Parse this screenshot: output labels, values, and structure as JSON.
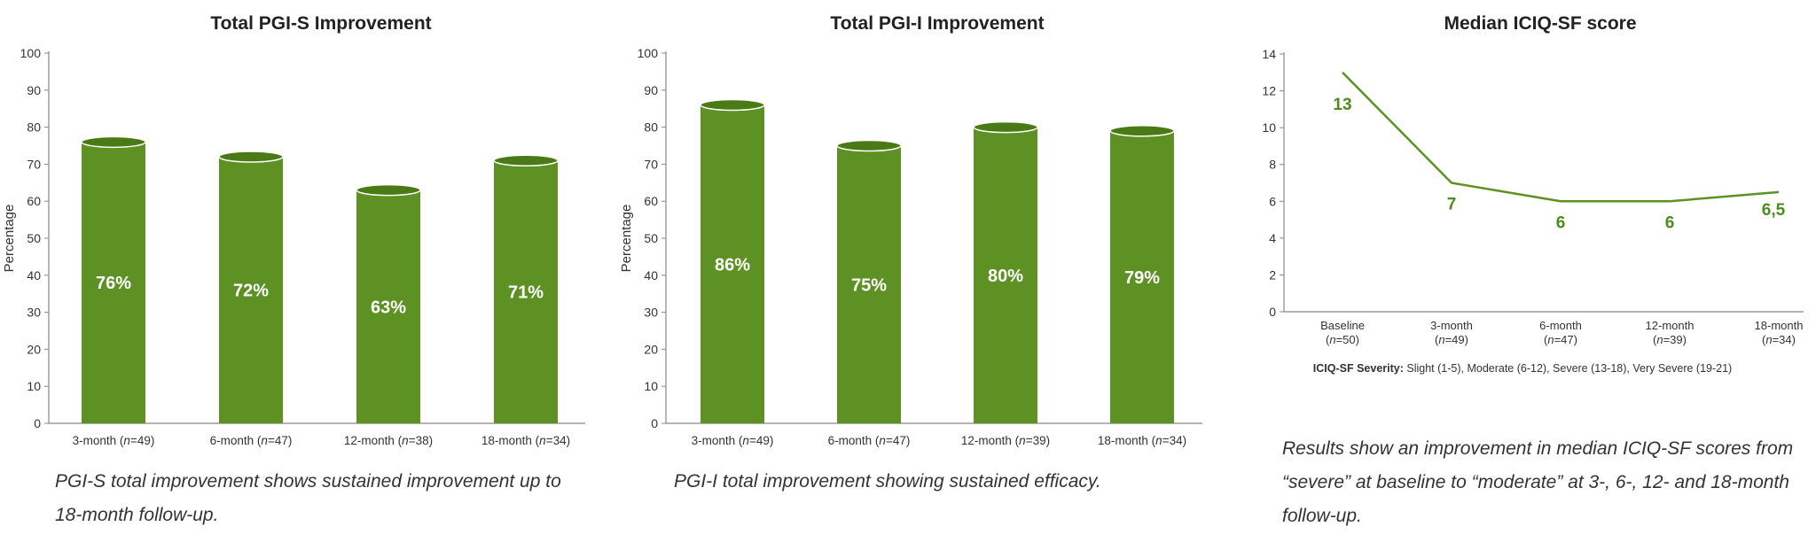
{
  "colors": {
    "bar": "#5e9124",
    "bar_top": "#4a7a16",
    "line": "#5e9124",
    "label_green": "#4f8a1c",
    "axis": "#888888",
    "text": "#333333",
    "white": "#ffffff"
  },
  "chart_data": [
    {
      "type": "bar",
      "title": "Total PGI-S Improvement",
      "ylabel": "Percentage",
      "xlabel": "",
      "ylim": [
        0,
        100
      ],
      "yticks": [
        0,
        10,
        20,
        30,
        40,
        50,
        60,
        70,
        80,
        90,
        100
      ],
      "categories": [
        "3-month",
        "6-month",
        "12-month",
        "18-month"
      ],
      "n_labels": [
        "49",
        "47",
        "38",
        "34"
      ],
      "values": [
        76,
        72,
        63,
        71
      ],
      "data_labels": [
        "76%",
        "72%",
        "63%",
        "71%"
      ],
      "caption": [
        "PGI-S total improvement shows sustained improvement up to",
        "18-month follow-up."
      ]
    },
    {
      "type": "bar",
      "title": "Total PGI-I Improvement",
      "ylabel": "Percentage",
      "xlabel": "",
      "ylim": [
        0,
        100
      ],
      "yticks": [
        0,
        10,
        20,
        30,
        40,
        50,
        60,
        70,
        80,
        90,
        100
      ],
      "categories": [
        "3-month",
        "6-month",
        "12-month",
        "18-month"
      ],
      "n_labels": [
        "49",
        "47",
        "39",
        "34"
      ],
      "values": [
        86,
        75,
        80,
        79
      ],
      "data_labels": [
        "86%",
        "75%",
        "80%",
        "79%"
      ],
      "caption": [
        "PGI-I total improvement showing sustained efficacy."
      ]
    },
    {
      "type": "line",
      "title": "Median ICIQ-SF score",
      "ylabel": "",
      "xlabel": "",
      "ylim": [
        0,
        14
      ],
      "yticks": [
        0,
        2,
        4,
        6,
        8,
        10,
        12,
        14
      ],
      "categories": [
        "Baseline",
        "3-month",
        "6-month",
        "12-month",
        "18-month"
      ],
      "n_labels": [
        "50",
        "49",
        "47",
        "39",
        "34"
      ],
      "values": [
        13,
        7,
        6,
        6,
        6.5
      ],
      "data_labels": [
        "13",
        "7",
        "6",
        "6",
        "6,5"
      ],
      "severity_label": "ICIQ-SF Severity:",
      "severity_text": "Slight (1-5), Moderate (6-12), Severe (13-18), Very Severe (19-21)",
      "caption": [
        "Results show an improvement in median ICIQ-SF scores from",
        "“severe” at baseline to  “moderate”  at 3-, 6-, 12- and 18-month",
        "follow-up."
      ]
    }
  ]
}
